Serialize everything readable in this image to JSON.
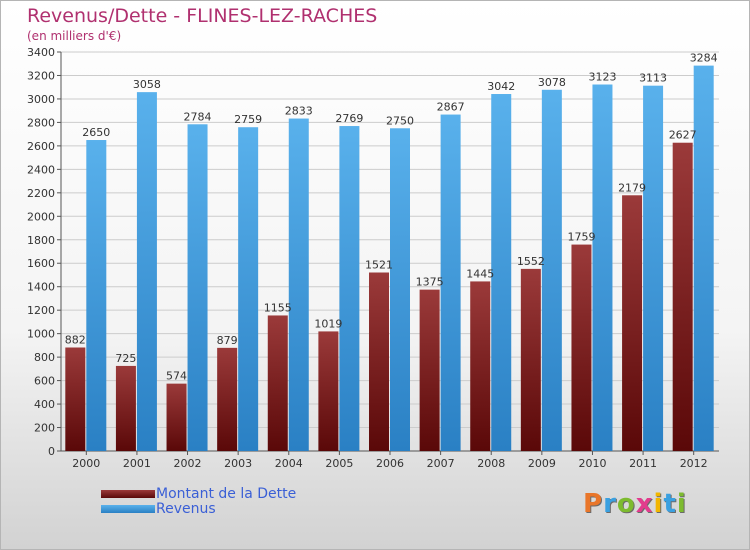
{
  "header": {
    "title": "Revenus/Dette - FLINES-LEZ-RACHES",
    "subtitle": "(en milliers d'€)"
  },
  "colors": {
    "debt": "#6e1414",
    "debt_light": "#9b3a3a",
    "revenue": "#4ea8e6",
    "revenue_dark": "#2f86c8",
    "grid": "#cccccc",
    "axis": "#555555",
    "title": "#b0306f",
    "legend_text": "#3a5fd6"
  },
  "legend": {
    "debt_label": "Montant de la Dette",
    "revenue_label": "Revenus"
  },
  "brand": {
    "logo_text": "Proxiti"
  },
  "chart_data": {
    "type": "bar",
    "title": "Revenus/Dette - FLINES-LEZ-RACHES",
    "subtitle": "(en milliers d'€)",
    "xlabel": "",
    "ylabel": "",
    "ylim": [
      0,
      3400
    ],
    "ytick_step": 200,
    "grid": true,
    "legend_position": "bottom-left",
    "categories": [
      "2000",
      "2001",
      "2002",
      "2003",
      "2004",
      "2005",
      "2006",
      "2007",
      "2008",
      "2009",
      "2010",
      "2011",
      "2012"
    ],
    "series": [
      {
        "name": "Montant de la Dette",
        "values": [
          882,
          725,
          574,
          879,
          1155,
          1019,
          1521,
          1375,
          1445,
          1552,
          1759,
          2179,
          2627
        ]
      },
      {
        "name": "Revenus",
        "values": [
          2650,
          3058,
          2784,
          2759,
          2833,
          2769,
          2750,
          2867,
          3042,
          3078,
          3123,
          3113,
          3284
        ]
      }
    ]
  }
}
